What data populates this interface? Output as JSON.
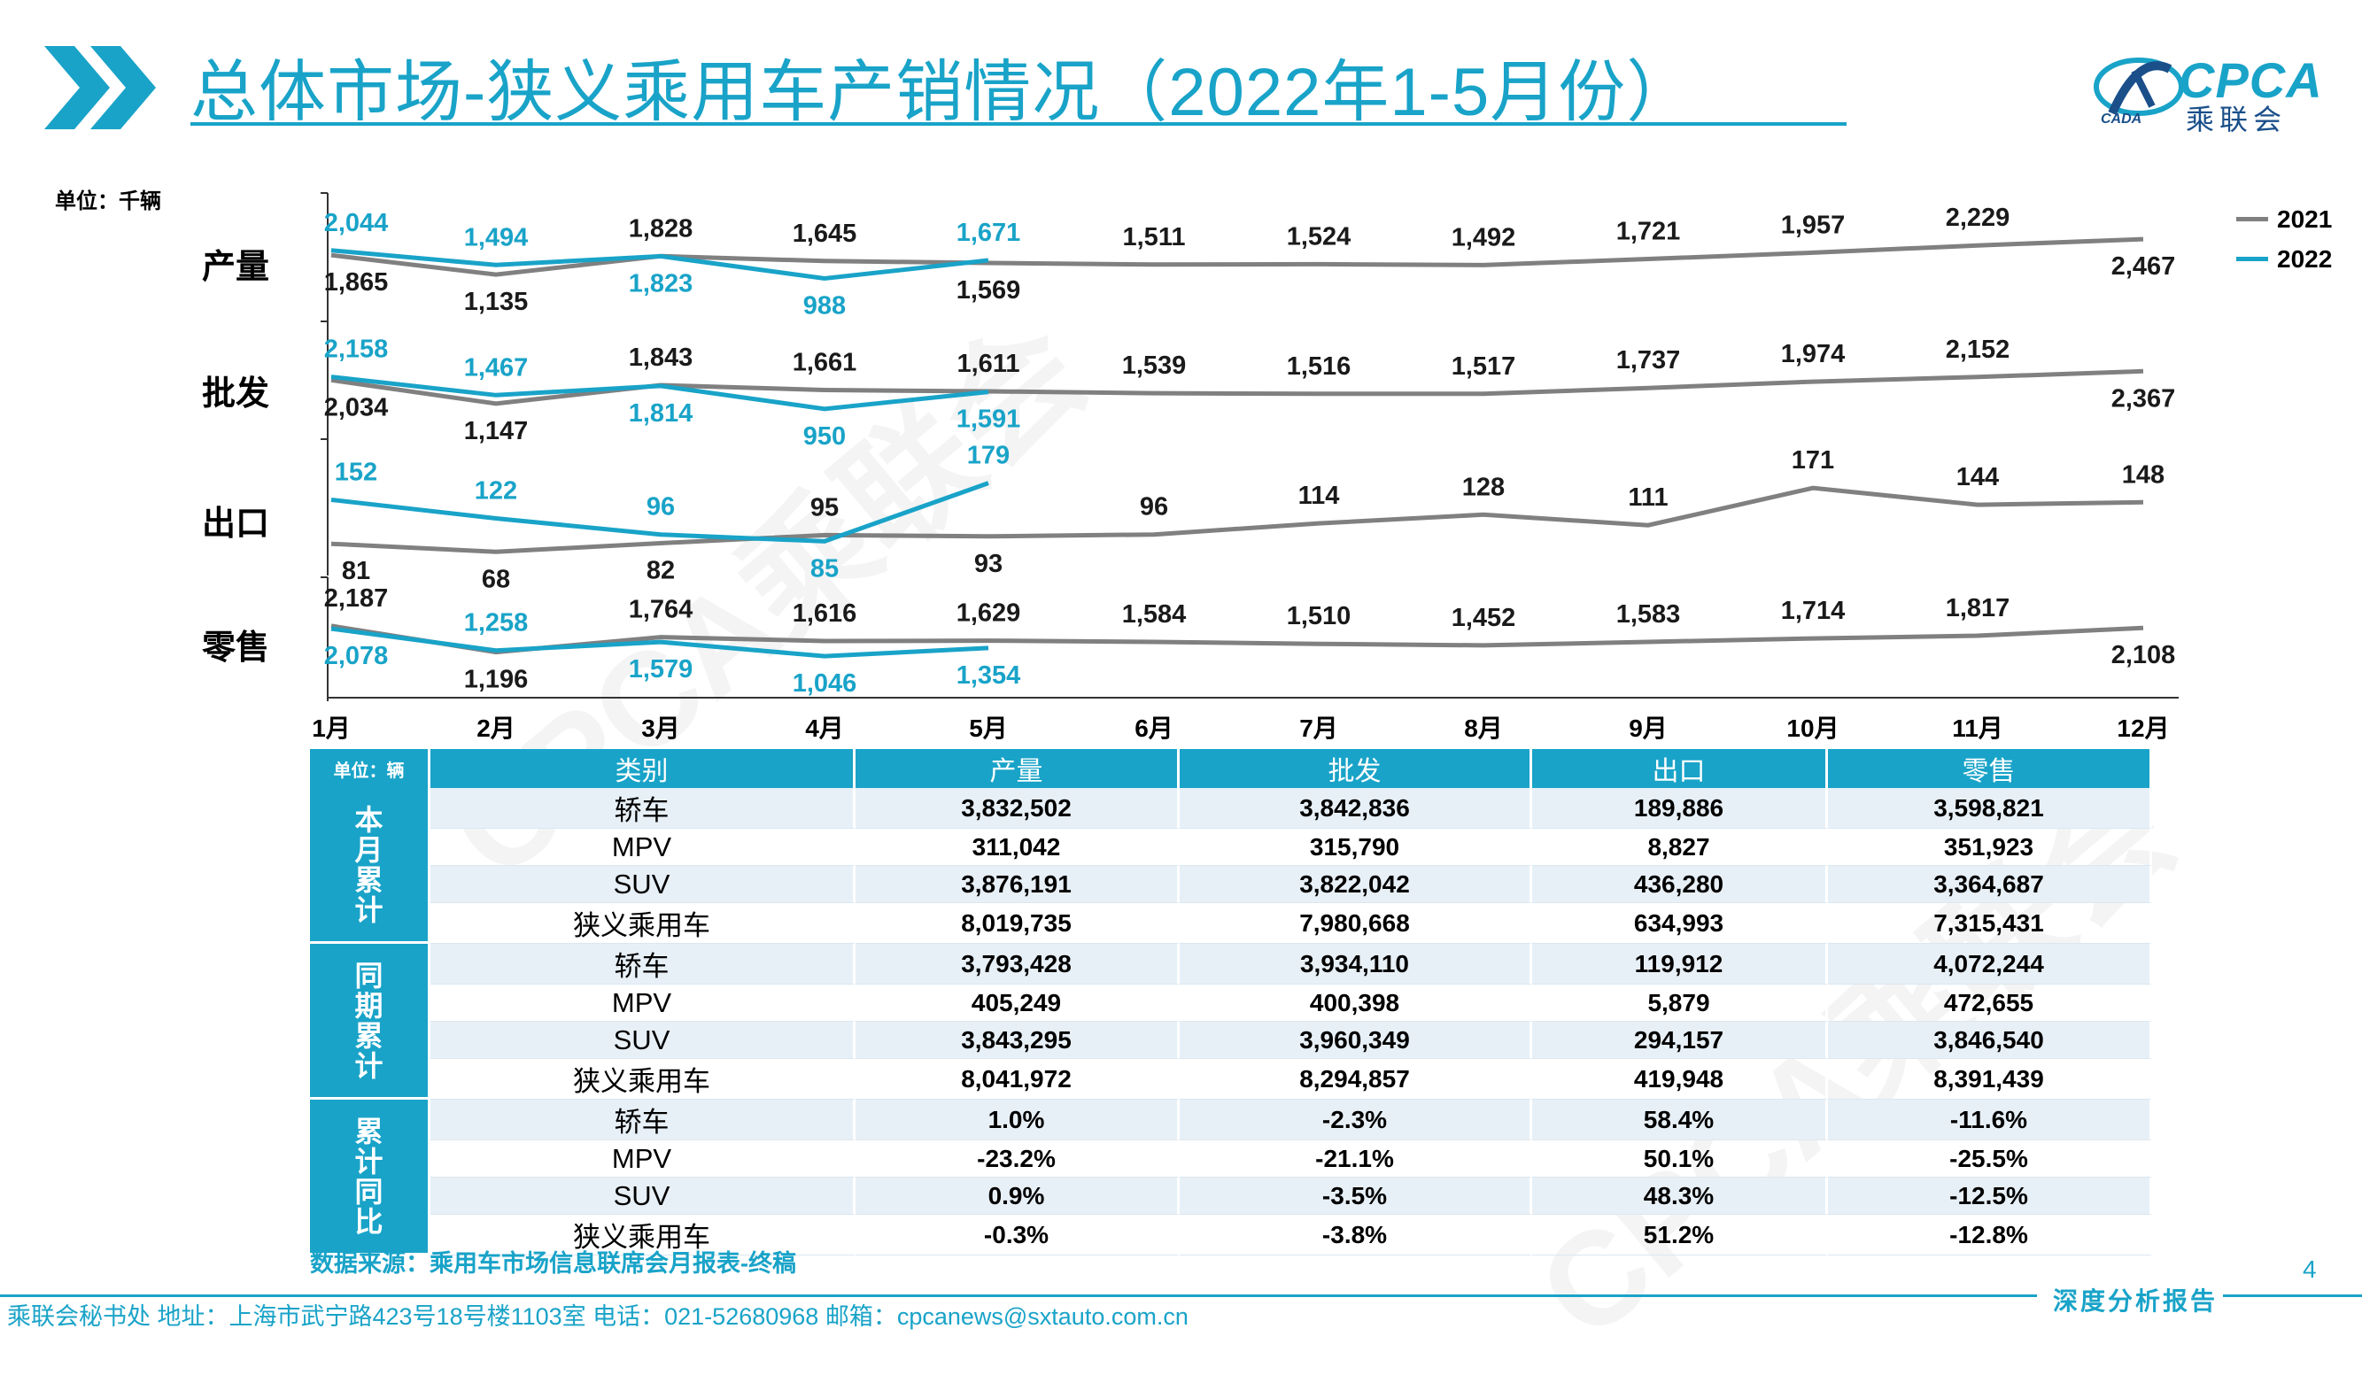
{
  "header": {
    "title": "总体市场-狭义乘用车产销情况（2022年1-5月份）",
    "logo_text": "CPCA",
    "logo_sub": "乘联会",
    "logo_small": "CADA"
  },
  "colors": {
    "accent": "#19A3C8",
    "series_2021": "#808080",
    "series_2022": "#19A3C8"
  },
  "chart_data": {
    "type": "line",
    "unit": "单位：千辆",
    "categories": [
      "1月",
      "2月",
      "3月",
      "4月",
      "5月",
      "6月",
      "7月",
      "8月",
      "9月",
      "10月",
      "11月",
      "12月"
    ],
    "legend": [
      "2021",
      "2022"
    ],
    "panels": [
      {
        "label": "产量",
        "series": [
          {
            "name": "2021",
            "values": [
              1865,
              1135,
              1828,
              1645,
              1569,
              1511,
              1524,
              1492,
              1721,
              1957,
              2229,
              2467
            ]
          },
          {
            "name": "2022",
            "values": [
              2044,
              1494,
              1823,
              988,
              1671
            ]
          }
        ]
      },
      {
        "label": "批发",
        "series": [
          {
            "name": "2021",
            "values": [
              2034,
              1147,
              1843,
              1661,
              1611,
              1539,
              1516,
              1517,
              1737,
              1974,
              2152,
              2367
            ]
          },
          {
            "name": "2022",
            "values": [
              2158,
              1467,
              1814,
              950,
              1591
            ]
          }
        ]
      },
      {
        "label": "出口",
        "series": [
          {
            "name": "2021",
            "values": [
              81,
              68,
              82,
              95,
              93,
              96,
              114,
              128,
              111,
              171,
              144,
              148
            ]
          },
          {
            "name": "2022",
            "values": [
              152,
              122,
              96,
              85,
              179
            ]
          }
        ]
      },
      {
        "label": "零售",
        "series": [
          {
            "name": "2021",
            "values": [
              2187,
              1196,
              1764,
              1616,
              1629,
              1584,
              1510,
              1452,
              1583,
              1714,
              1817,
              2108
            ]
          },
          {
            "name": "2022",
            "values": [
              2078,
              1258,
              1579,
              1046,
              1354
            ]
          }
        ]
      }
    ]
  },
  "table": {
    "unit": "单位：辆",
    "headers": [
      "类别",
      "产量",
      "批发",
      "出口",
      "零售"
    ],
    "groups": [
      {
        "name": "本月累计",
        "rows": [
          {
            "cat": "轿车",
            "vals": [
              "3,832,502",
              "3,842,836",
              "189,886",
              "3,598,821"
            ]
          },
          {
            "cat": "MPV",
            "vals": [
              "311,042",
              "315,790",
              "8,827",
              "351,923"
            ]
          },
          {
            "cat": "SUV",
            "vals": [
              "3,876,191",
              "3,822,042",
              "436,280",
              "3,364,687"
            ]
          },
          {
            "cat": "狭义乘用车",
            "vals": [
              "8,019,735",
              "7,980,668",
              "634,993",
              "7,315,431"
            ]
          }
        ]
      },
      {
        "name": "同期累计",
        "rows": [
          {
            "cat": "轿车",
            "vals": [
              "3,793,428",
              "3,934,110",
              "119,912",
              "4,072,244"
            ]
          },
          {
            "cat": "MPV",
            "vals": [
              "405,249",
              "400,398",
              "5,879",
              "472,655"
            ]
          },
          {
            "cat": "SUV",
            "vals": [
              "3,843,295",
              "3,960,349",
              "294,157",
              "3,846,540"
            ]
          },
          {
            "cat": "狭义乘用车",
            "vals": [
              "8,041,972",
              "8,294,857",
              "419,948",
              "8,391,439"
            ]
          }
        ]
      },
      {
        "name": "累计同比",
        "rows": [
          {
            "cat": "轿车",
            "vals": [
              "1.0%",
              "-2.3%",
              "58.4%",
              "-11.6%"
            ]
          },
          {
            "cat": "MPV",
            "vals": [
              "-23.2%",
              "-21.1%",
              "50.1%",
              "-25.5%"
            ]
          },
          {
            "cat": "SUV",
            "vals": [
              "0.9%",
              "-3.5%",
              "48.3%",
              "-12.5%"
            ]
          },
          {
            "cat": "狭义乘用车",
            "vals": [
              "-0.3%",
              "-3.8%",
              "51.2%",
              "-12.8%"
            ]
          }
        ]
      }
    ]
  },
  "source": "数据来源：乘用车市场信息联席会月报表-终稿",
  "page_number": "4",
  "report_tag": "深度分析报告",
  "footer": "乘联会秘书处   地址：上海市武宁路423号18号楼1103室   电话：021-52680968   邮箱：cpcanews@sxtauto.com.cn",
  "watermark": "CPCA乘联会"
}
